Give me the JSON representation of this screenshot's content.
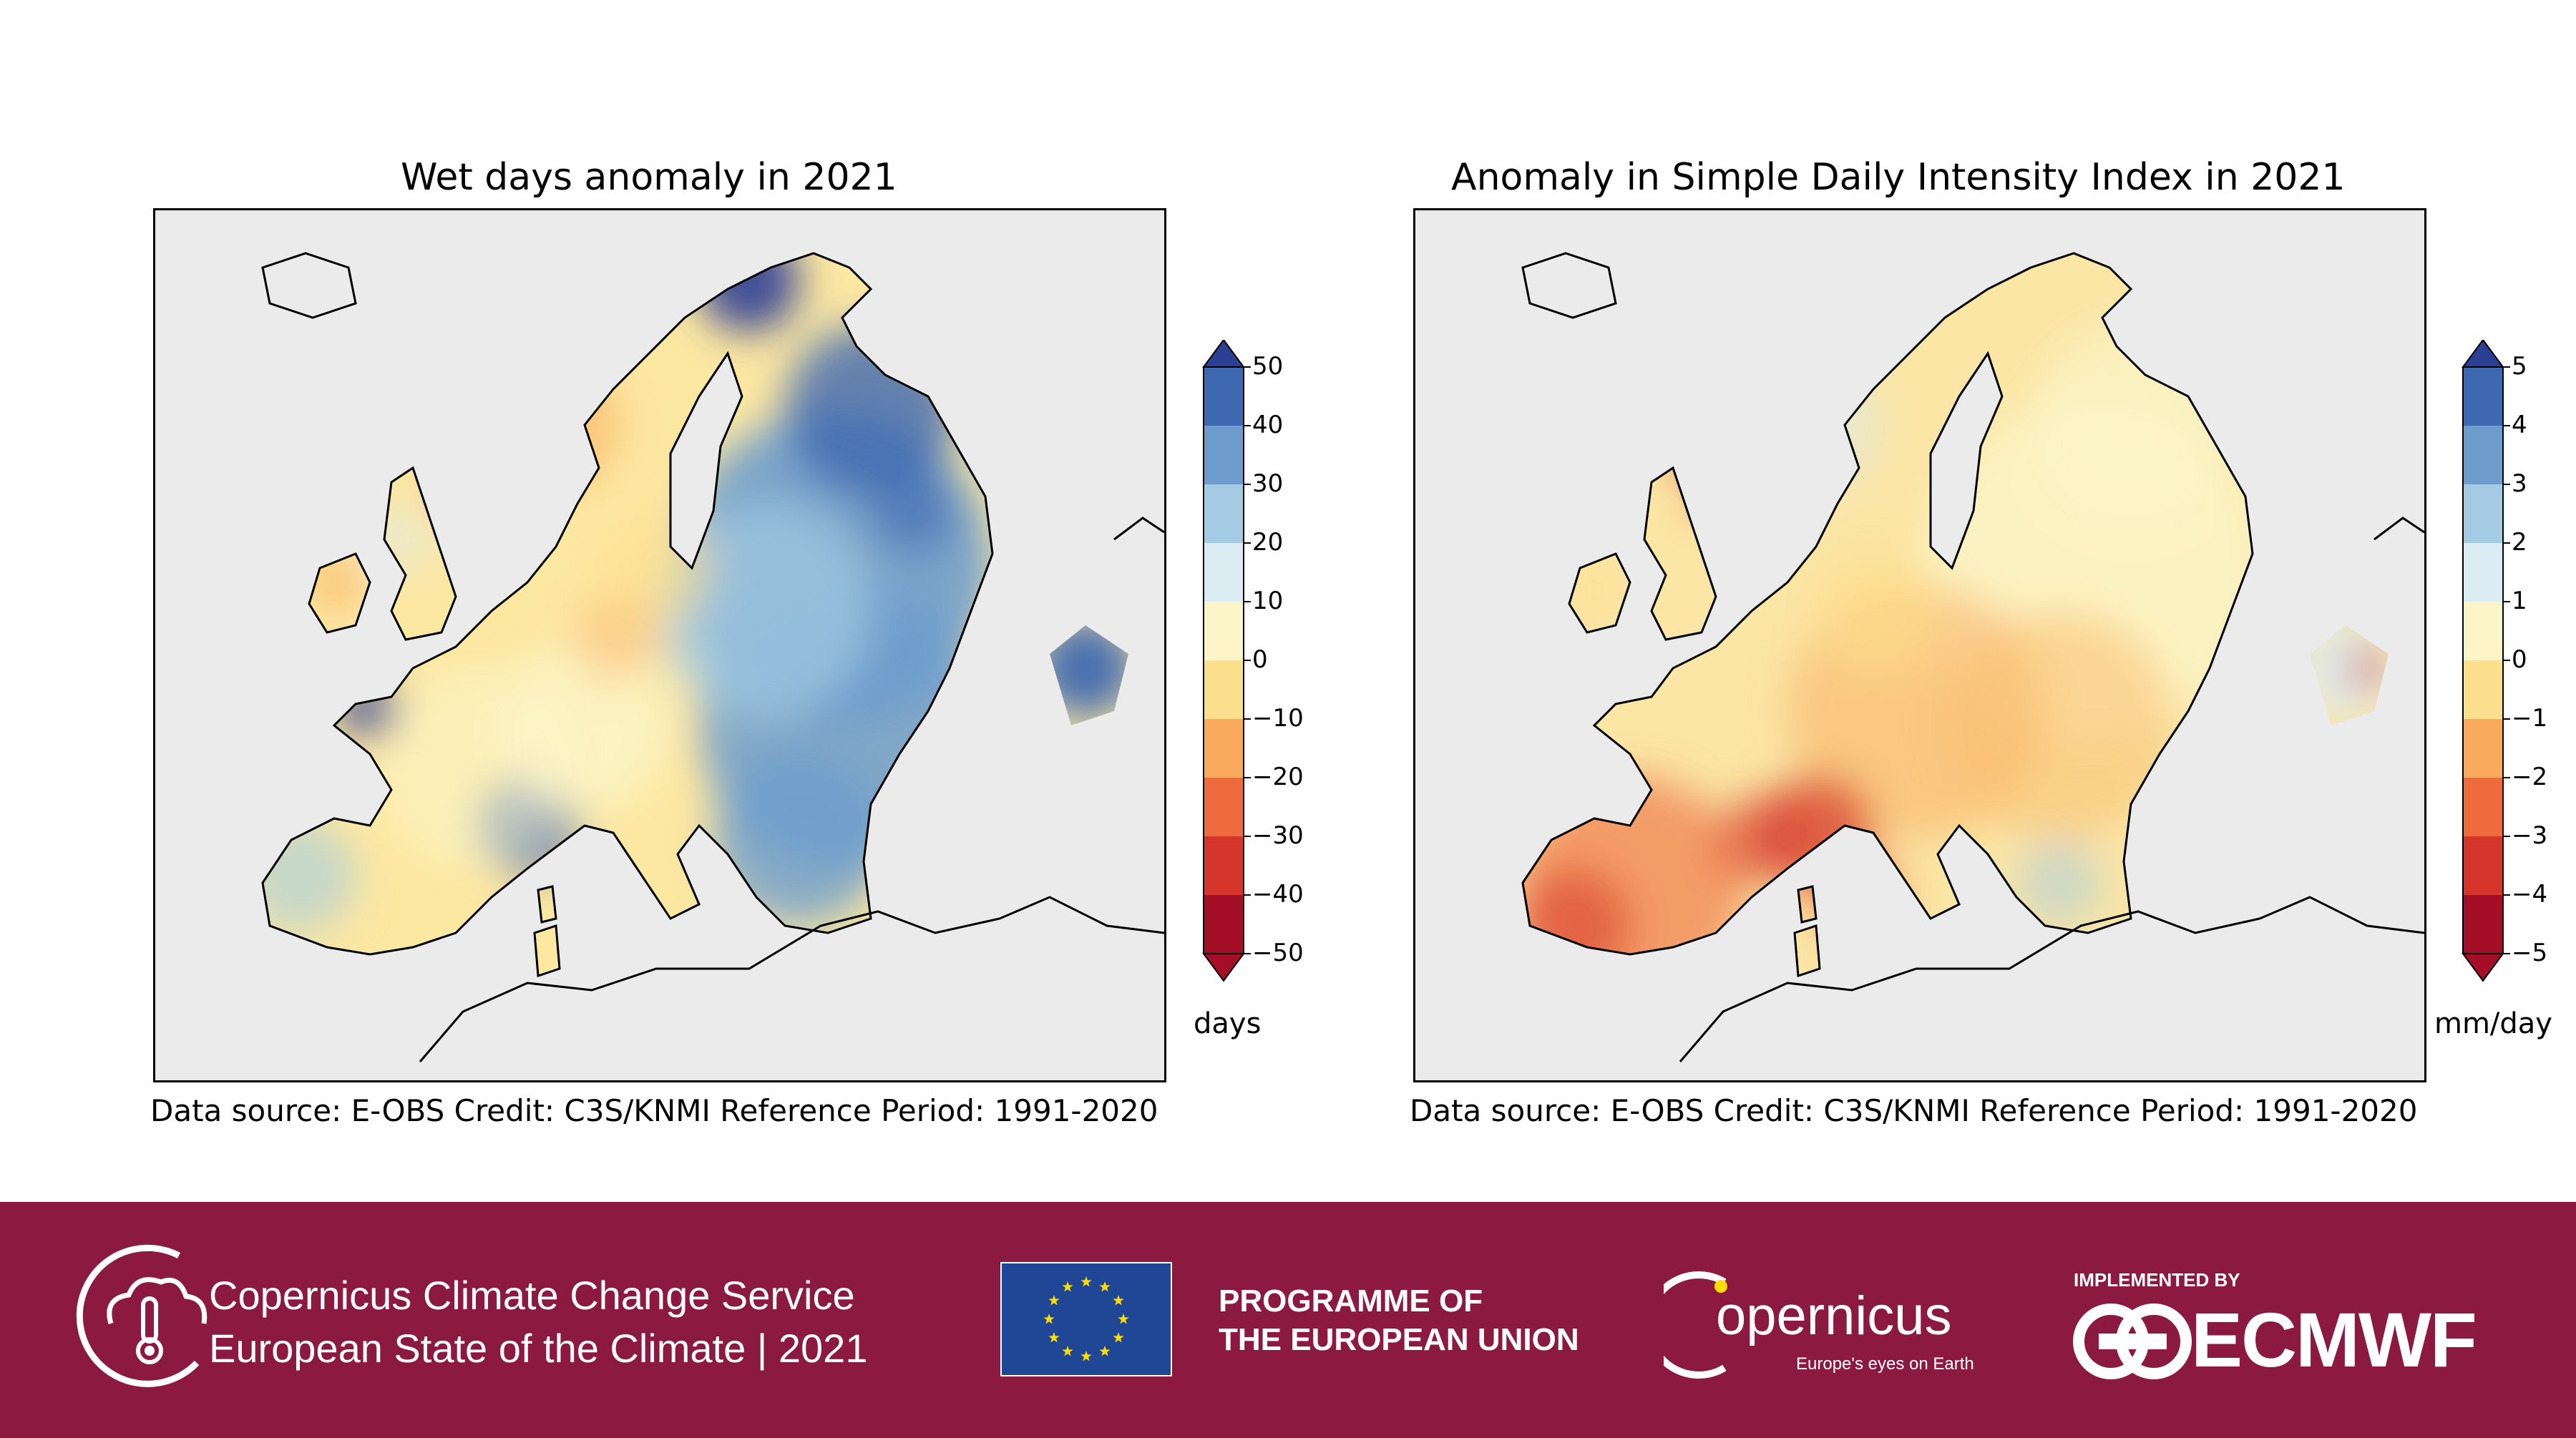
{
  "panels": [
    {
      "title": "Wet days anomaly in 2021",
      "credits": "Data source: E-OBS  Credit: C3S/KNMI  Reference Period: 1991-2020",
      "colorbar": {
        "ticks": [
          "50",
          "40",
          "30",
          "20",
          "10",
          "0",
          "−10",
          "−20",
          "−30",
          "−40",
          "−50"
        ],
        "unit": "days",
        "colors": [
          "#2b3f95",
          "#3e68b0",
          "#6d9ccd",
          "#a4cbe3",
          "#dcecf3",
          "#fbf5c8",
          "#fde08e",
          "#f9aa5c",
          "#ef6b3e",
          "#d5352a",
          "#a50e27"
        ]
      },
      "map_scheme": "wet"
    },
    {
      "title": "Anomaly in Simple Daily Intensity Index in 2021",
      "credits": "Data source: E-OBS  Credit: C3S/KNMI  Reference Period: 1991-2020",
      "colorbar": {
        "ticks": [
          "5",
          "4",
          "3",
          "2",
          "1",
          "0",
          "−1",
          "−2",
          "−3",
          "−4",
          "−5"
        ],
        "unit": "mm/day",
        "colors": [
          "#2b3f95",
          "#3e68b0",
          "#6d9ccd",
          "#a4cbe3",
          "#dcecf3",
          "#fbf5c8",
          "#fde08e",
          "#f9aa5c",
          "#ef6b3e",
          "#d5352a",
          "#a50e27"
        ]
      },
      "map_scheme": "dry"
    }
  ],
  "footer": {
    "service_line1": "Copernicus Climate Change Service",
    "service_line2": "European State of the Climate | 2021",
    "eu_line1": "PROGRAMME OF",
    "eu_line2": "THE EUROPEAN UNION",
    "copernicus_logo": "opernicus",
    "copernicus_tagline": "Europe's eyes on Earth",
    "implemented_by": "IMPLEMENTED BY",
    "ecmwf": "ECMWF",
    "colors": {
      "background": "#8c1a40",
      "eu_flag": "#1f4796",
      "eu_stars": "#ffdd00"
    }
  }
}
